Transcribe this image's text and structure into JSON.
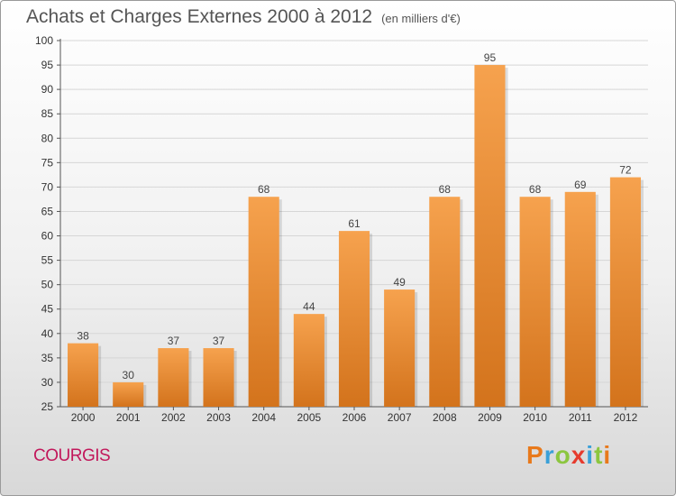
{
  "title": "Achats et Charges Externes 2000 à 2012",
  "subtitle": "(en milliers d'€)",
  "commune": "COURGIS",
  "logo": {
    "letters": [
      "P",
      "r",
      "o",
      "x",
      "i",
      "t",
      "i"
    ],
    "colors": [
      "#e8791b",
      "#3aa0d8",
      "#8cc63f",
      "#e63b2e",
      "#3aa0d8",
      "#8cc63f",
      "#e8791b"
    ]
  },
  "chart_data": {
    "type": "bar",
    "categories": [
      "2000",
      "2001",
      "2002",
      "2003",
      "2004",
      "2005",
      "2006",
      "2007",
      "2008",
      "2009",
      "2010",
      "2011",
      "2012"
    ],
    "values": [
      38,
      30,
      37,
      37,
      68,
      44,
      61,
      49,
      68,
      95,
      68,
      69,
      72
    ],
    "ylim": [
      25,
      100
    ],
    "yticks": [
      25,
      30,
      35,
      40,
      45,
      50,
      55,
      60,
      65,
      70,
      75,
      80,
      85,
      90,
      95,
      100
    ],
    "grid": true,
    "bar_color_light": "#f6a24e",
    "bar_color_dark": "#d3731c"
  }
}
